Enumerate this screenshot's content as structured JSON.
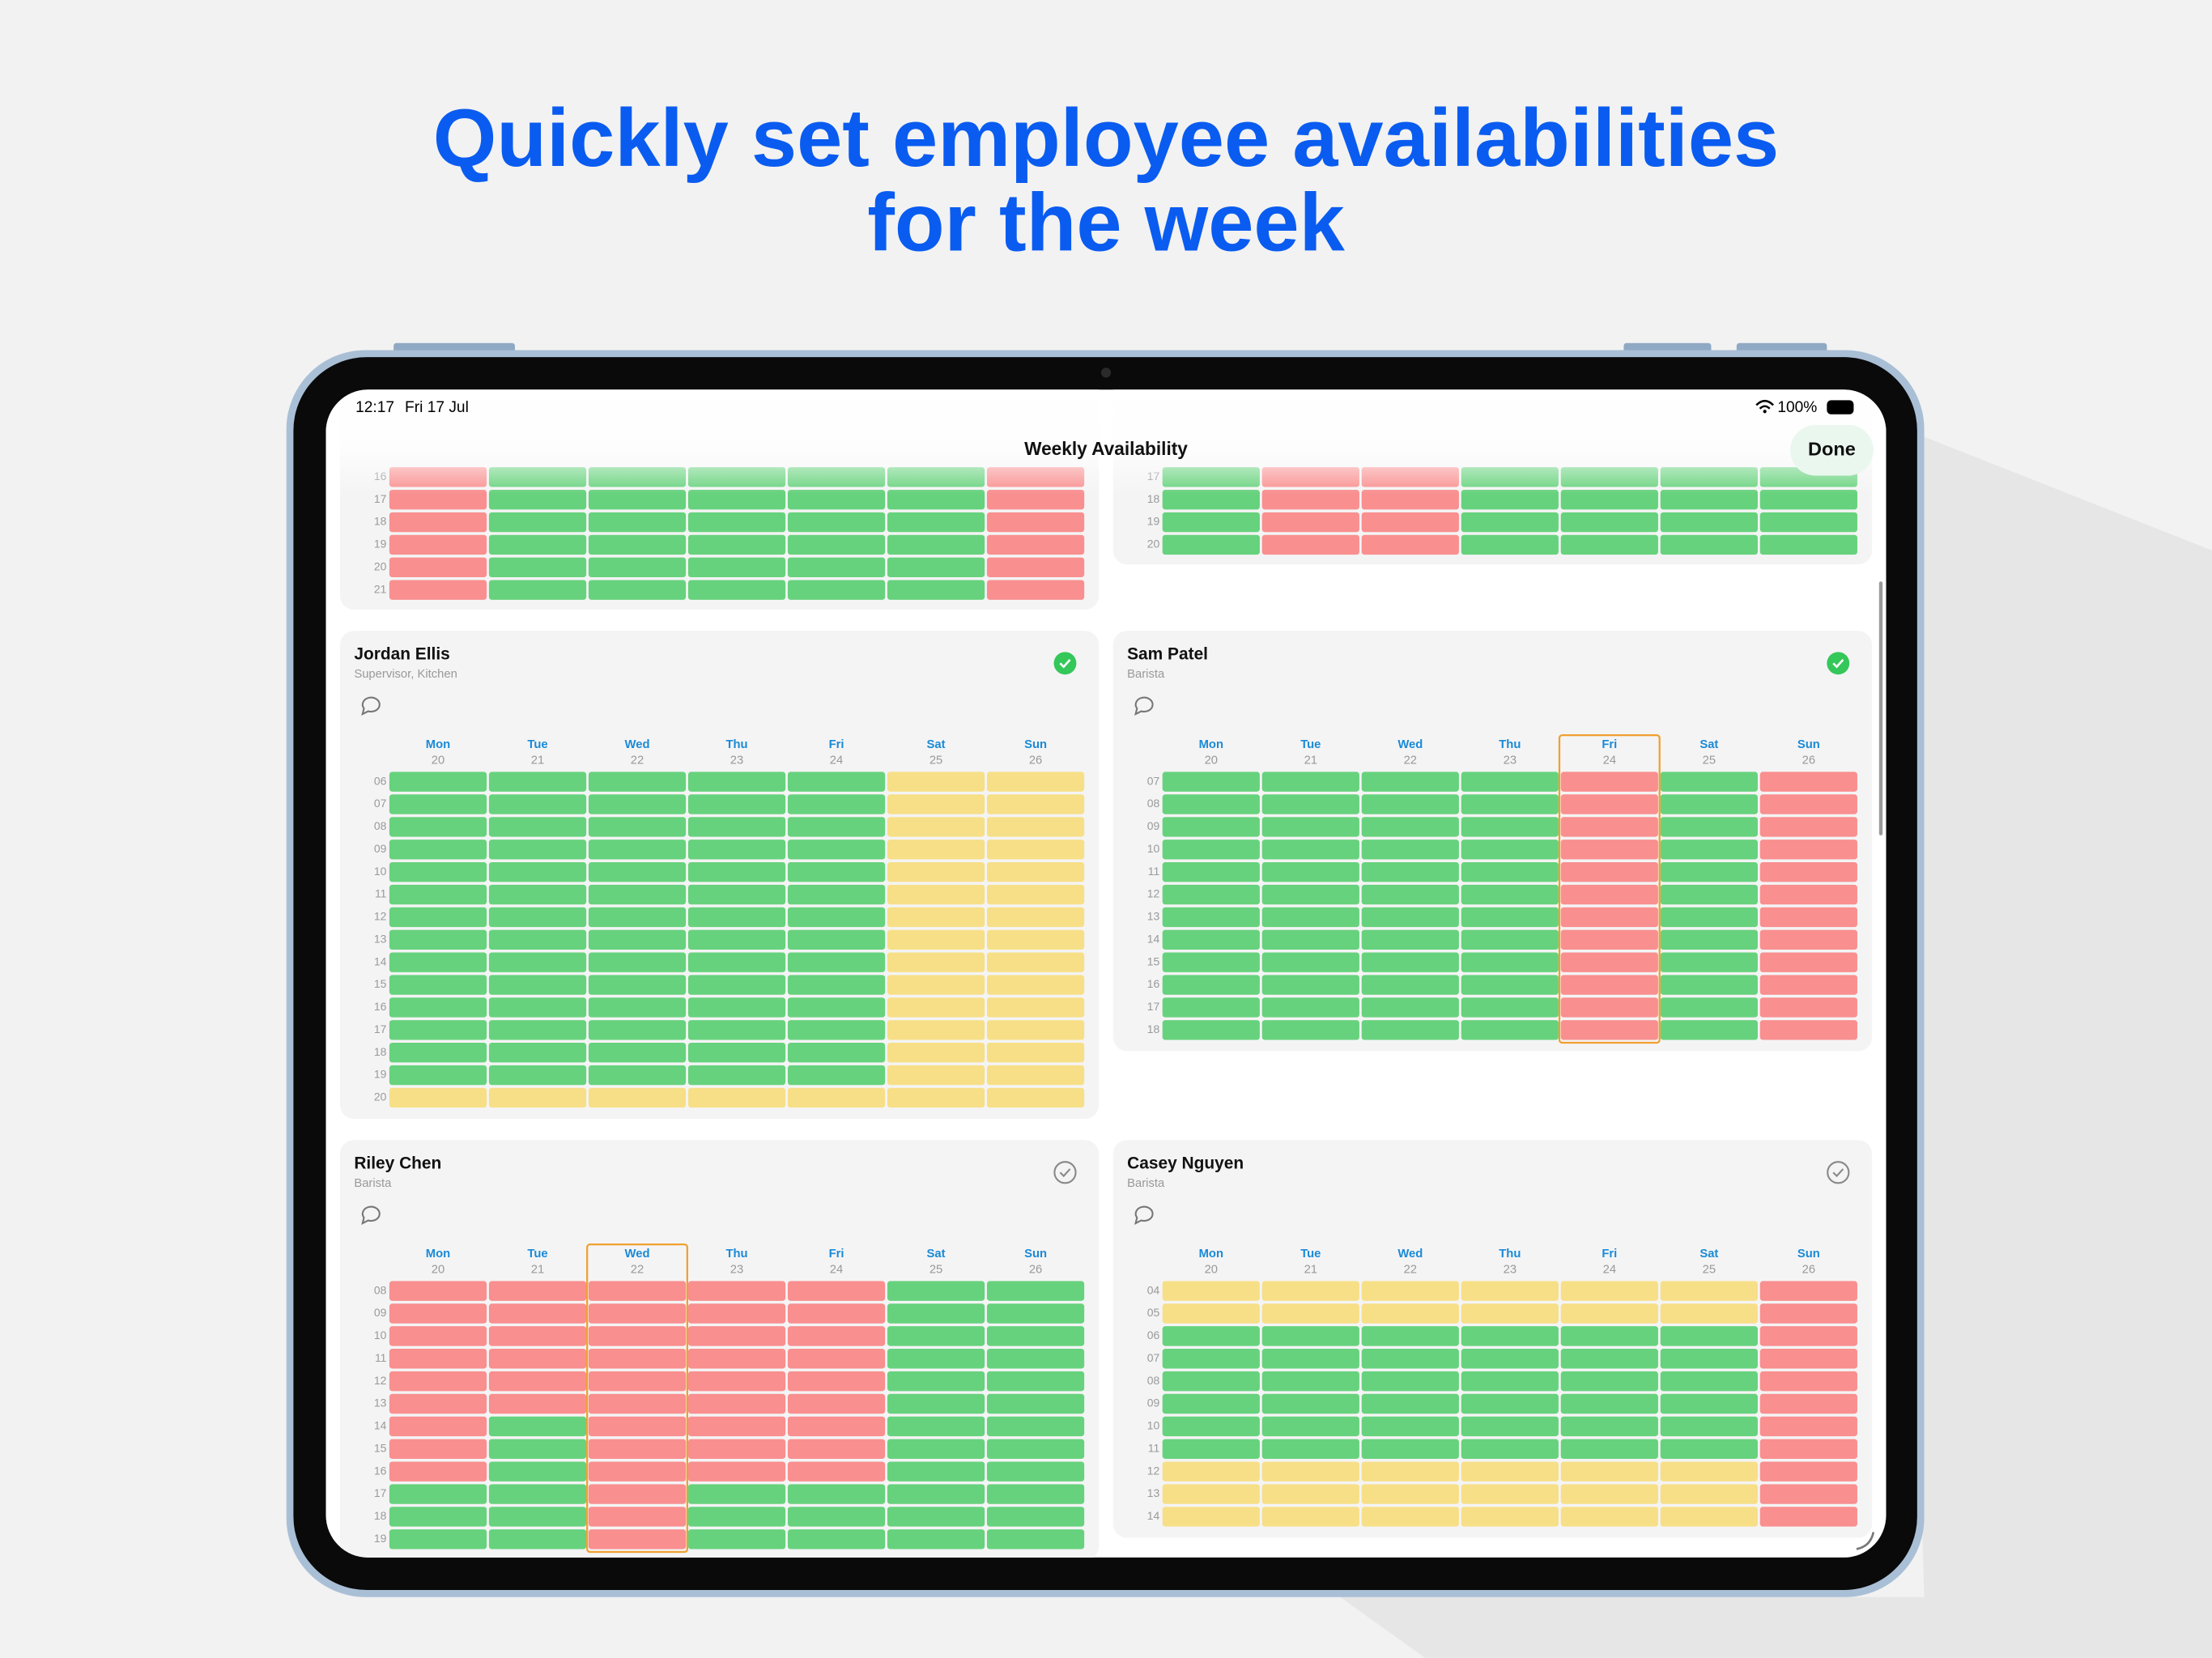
{
  "headline": [
    "Quickly set employee availabilities",
    "for the week"
  ],
  "status_bar": {
    "time": "12:17",
    "date": "Fri 17 Jul",
    "battery": "100%"
  },
  "nav": {
    "title": "Weekly Availability",
    "done": "Done"
  },
  "palette": {
    "G": "#67d27d",
    "R": "#f98f8f",
    "Y": "#f7df88"
  },
  "cards": [
    {
      "hours": [
        "16",
        "17",
        "18",
        "19",
        "20",
        "21"
      ],
      "rows": [
        "RGGGGGR",
        "RGGGGGR",
        "RGGGGGR",
        "RGGGGGR",
        "RGGGGGR",
        "RGGGGGR"
      ]
    },
    {
      "hours": [
        "17",
        "18",
        "19",
        "20"
      ],
      "rows": [
        "GRRGGGG",
        "GRRGGGG",
        "GRRGGGG",
        "GRRGGGG"
      ]
    },
    {
      "name": "Jordan Ellis",
      "role": "Supervisor, Kitchen",
      "confirmed": true,
      "days": [
        "Mon",
        "Tue",
        "Wed",
        "Thu",
        "Fri",
        "Sat",
        "Sun"
      ],
      "dates": [
        "20",
        "21",
        "22",
        "23",
        "24",
        "25",
        "26"
      ],
      "hours": [
        "06",
        "07",
        "08",
        "09",
        "10",
        "11",
        "12",
        "13",
        "14",
        "15",
        "16",
        "17",
        "18",
        "19",
        "20"
      ],
      "rows": [
        "GGGGGYY",
        "GGGGGYY",
        "GGGGGYY",
        "GGGGGYY",
        "GGGGGYY",
        "GGGGGYY",
        "GGGGGYY",
        "GGGGGYY",
        "GGGGGYY",
        "GGGGGYY",
        "GGGGGYY",
        "GGGGGYY",
        "GGGGGYY",
        "GGGGGYY",
        "YYYYYYY"
      ]
    },
    {
      "name": "Sam Patel",
      "role": "Barista",
      "confirmed": true,
      "highlight": 4,
      "days": [
        "Mon",
        "Tue",
        "Wed",
        "Thu",
        "Fri",
        "Sat",
        "Sun"
      ],
      "dates": [
        "20",
        "21",
        "22",
        "23",
        "24",
        "25",
        "26"
      ],
      "hours": [
        "07",
        "08",
        "09",
        "10",
        "11",
        "12",
        "13",
        "14",
        "15",
        "16",
        "17",
        "18"
      ],
      "rows": [
        "GGGGRGR",
        "GGGGRGR",
        "GGGGRGR",
        "GGGGRGR",
        "GGGGRGR",
        "GGGGRGR",
        "GGGGRGR",
        "GGGGRGR",
        "GGGGRGR",
        "GGGGRGR",
        "GGGGRGR",
        "GGGGRGR"
      ]
    },
    {
      "name": "Riley Chen",
      "role": "Barista",
      "confirmed": false,
      "highlight": 2,
      "days": [
        "Mon",
        "Tue",
        "Wed",
        "Thu",
        "Fri",
        "Sat",
        "Sun"
      ],
      "dates": [
        "20",
        "21",
        "22",
        "23",
        "24",
        "25",
        "26"
      ],
      "hours": [
        "08",
        "09",
        "10",
        "11",
        "12",
        "13",
        "14",
        "15",
        "16",
        "17",
        "18",
        "19"
      ],
      "rows": [
        "RRRRRGG",
        "RRRRRGG",
        "RRRRRGG",
        "RRRRRGG",
        "RRRRRGG",
        "RRRRRGG",
        "RGRRRGG",
        "RGRRRGG",
        "RGRRRGG",
        "GGRGGGG",
        "GGRGGGG",
        "GGRGGGG"
      ]
    },
    {
      "name": "Casey Nguyen",
      "role": "Barista",
      "confirmed": false,
      "days": [
        "Mon",
        "Tue",
        "Wed",
        "Thu",
        "Fri",
        "Sat",
        "Sun"
      ],
      "dates": [
        "20",
        "21",
        "22",
        "23",
        "24",
        "25",
        "26"
      ],
      "hours": [
        "04",
        "05",
        "06",
        "07",
        "08",
        "09",
        "10",
        "11",
        "12",
        "13",
        "14"
      ],
      "rows": [
        "YYYYYYR",
        "YYYYYYR",
        "GGGGGGR",
        "GGGGGGR",
        "GGGGGGR",
        "GGGGGGR",
        "GGGGGGR",
        "GGGGGGR",
        "YYYYYYR",
        "YYYYYYR",
        "YYYYYYR"
      ]
    }
  ]
}
